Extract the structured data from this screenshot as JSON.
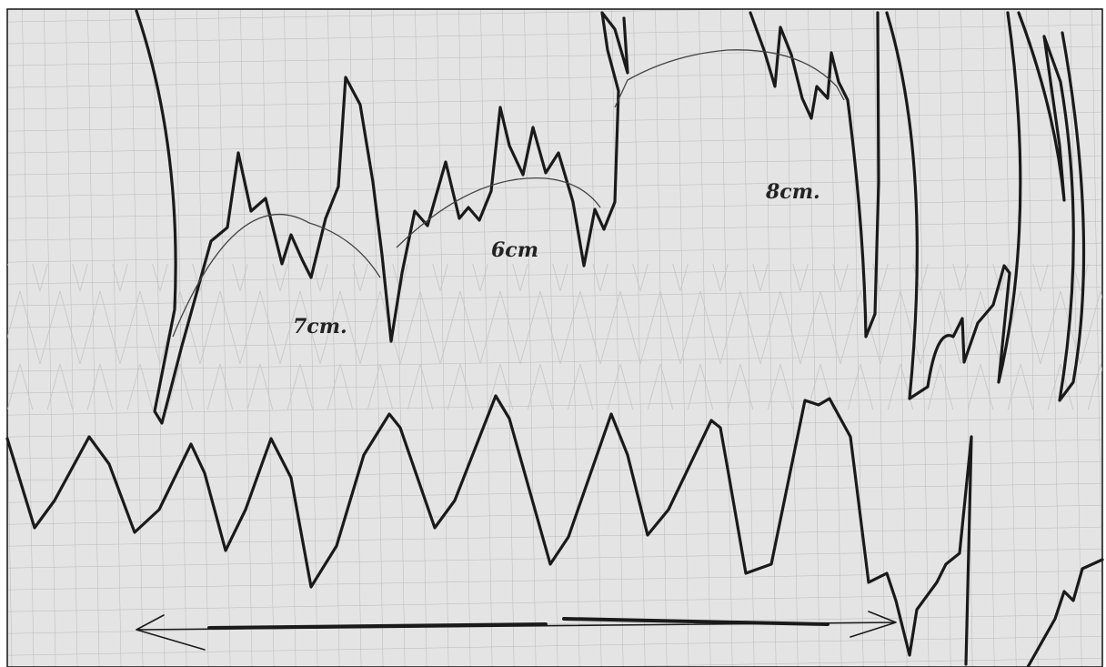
{
  "annotations": [
    "7cm.",
    "6cm",
    "8cm."
  ]
}
